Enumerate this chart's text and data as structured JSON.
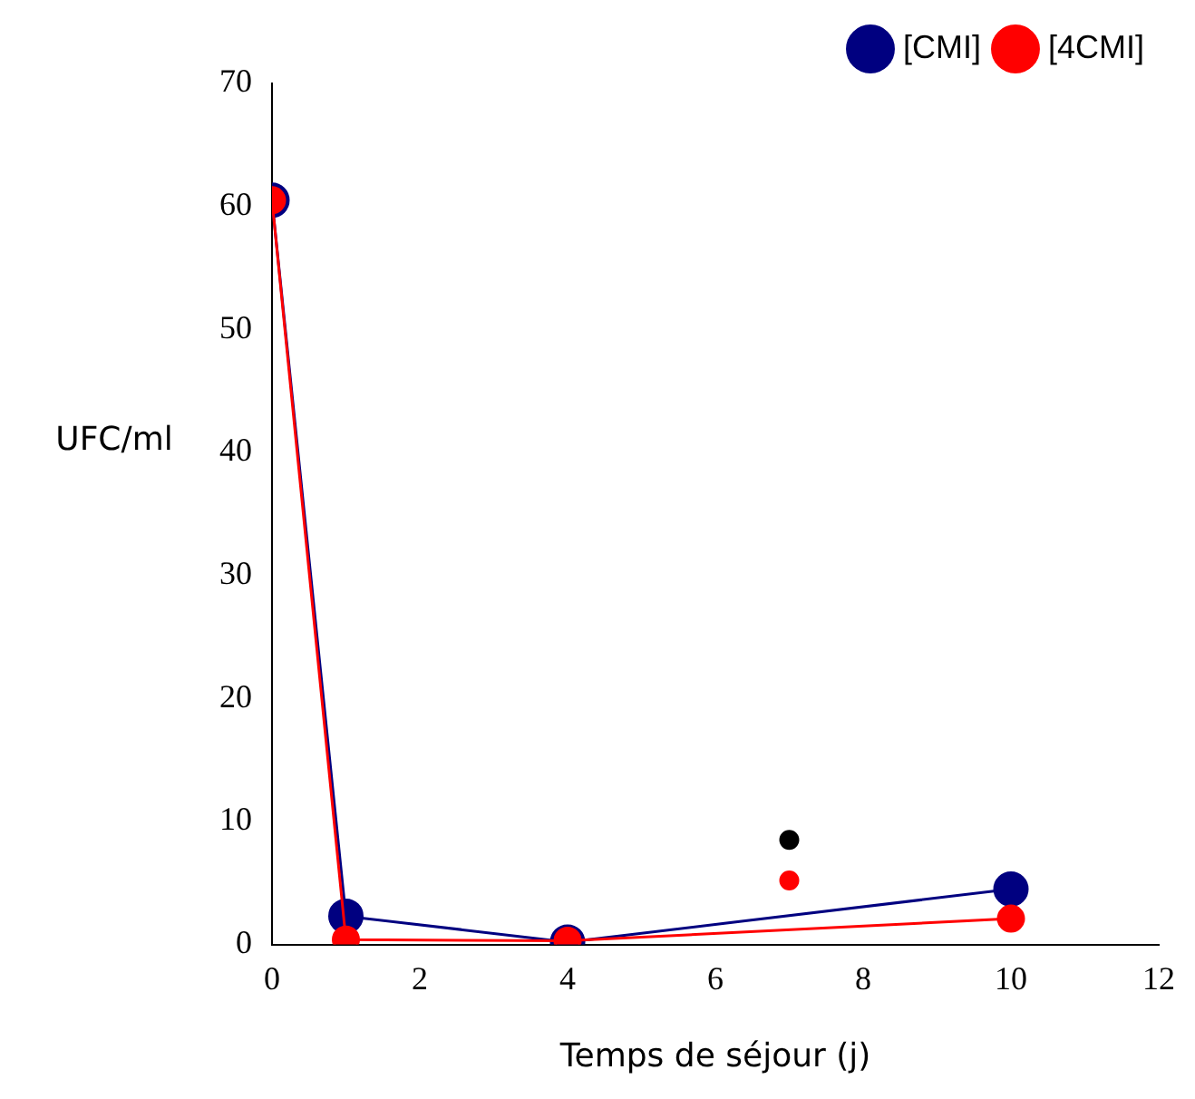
{
  "chart_data": {
    "type": "line",
    "xlabel": "Temps de séjour (j)",
    "ylabel": "UFC/ml",
    "x": [
      0,
      1,
      4,
      7,
      10
    ],
    "series": [
      {
        "name": "[CMI]",
        "color": "#000080",
        "values": [
          60.5,
          2.3,
          0.2,
          null,
          4.5
        ]
      },
      {
        "name": "[4CMI]",
        "color": "#ff0000",
        "values": [
          60.5,
          0.4,
          0.3,
          null,
          2.1
        ]
      },
      {
        "type": "scatter",
        "color": "#000000",
        "x": [
          7
        ],
        "values": [
          8.5
        ]
      },
      {
        "type": "scatter",
        "color": "#ff0000",
        "x": [
          7
        ],
        "values": [
          5.2
        ]
      }
    ],
    "xlim": [
      0,
      12
    ],
    "xticks": [
      0,
      2,
      4,
      6,
      8,
      10,
      12
    ],
    "ylim": [
      0,
      70
    ],
    "yticks": [
      0,
      10,
      20,
      30,
      40,
      50,
      60,
      70
    ],
    "marker": "circle",
    "legend": "top right",
    "grid": false
  }
}
